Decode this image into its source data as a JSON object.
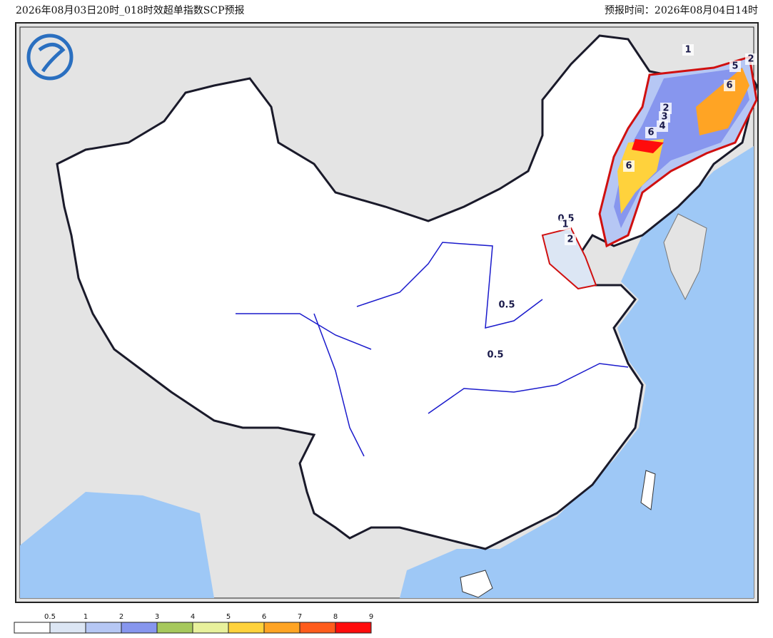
{
  "header": {
    "title": "2026年08月03日20时_018时效超单指数SCP预报",
    "forecast_time": "预报时间：2026年08月04日14时"
  },
  "contour_labels": [
    "1",
    "2",
    "5",
    "6",
    "2",
    "3",
    "4",
    "6",
    "6",
    "0.5",
    "1",
    "2",
    "0.5",
    "0.5"
  ],
  "legend": {
    "labels": [
      0.5,
      1,
      2,
      3,
      4,
      5,
      6,
      7,
      8,
      9
    ],
    "colors": [
      "#ffffff",
      "#dce6f4",
      "#b6c7f4",
      "#8796ee",
      "#a6c85c",
      "#e8f19c",
      "#ffd23c",
      "#ffa424",
      "#ff5c1c",
      "#ff0c0c"
    ]
  }
}
